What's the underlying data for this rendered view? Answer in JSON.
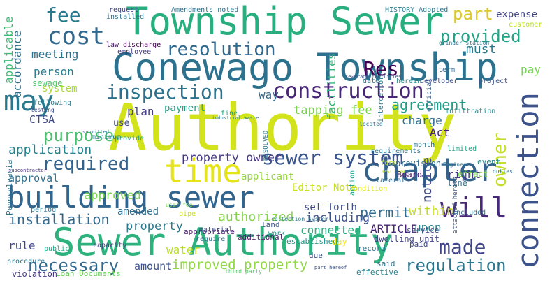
{
  "words": [
    {
      "text": "Authority",
      "color": "#d2e21b"
    },
    {
      "text": "Township Sewer",
      "color": "#29af7f"
    },
    {
      "text": "Conewago Township",
      "color": "#2c728e"
    },
    {
      "text": "Sewer Authority",
      "color": "#2db27d"
    },
    {
      "text": "chapter",
      "color": "#33638d"
    },
    {
      "text": "building sewer",
      "color": "#32658e"
    },
    {
      "text": "may",
      "color": "#2a788e"
    },
    {
      "text": "time",
      "color": "#e5e419"
    },
    {
      "text": "cost",
      "color": "#31688e"
    },
    {
      "text": "connection",
      "color": "#3b528b"
    },
    {
      "text": "construction",
      "color": "#482677"
    },
    {
      "text": "inspection",
      "color": "#2c718e"
    },
    {
      "text": "sewer system",
      "color": "#39558c"
    },
    {
      "text": "resolution",
      "color": "#31688e"
    },
    {
      "text": "will",
      "color": "#482979"
    },
    {
      "text": "required",
      "color": "#33638d"
    },
    {
      "text": "fee",
      "color": "#2a788e"
    },
    {
      "text": "Res",
      "color": "#440154"
    },
    {
      "text": "part",
      "color": "#ddc72a"
    },
    {
      "text": "provided",
      "color": "#20a386"
    },
    {
      "text": "made",
      "color": "#404688"
    },
    {
      "text": "necessary",
      "color": "#31688e"
    },
    {
      "text": "regulation",
      "color": "#2a768e"
    },
    {
      "text": "owner",
      "color": "#c5dd29"
    },
    {
      "text": "purpose",
      "color": "#4ac16d"
    },
    {
      "text": "application",
      "color": "#26828e"
    },
    {
      "text": "improved property",
      "color": "#8fd744"
    },
    {
      "text": "property owner",
      "color": "#453882"
    },
    {
      "text": "tapping fee",
      "color": "#7ad151"
    },
    {
      "text": "agreement",
      "color": "#1f9e89"
    },
    {
      "text": "installation",
      "color": "#31688e"
    },
    {
      "text": "permit",
      "color": "#2f6c8e"
    },
    {
      "text": "approved",
      "color": "#7ad151"
    },
    {
      "text": "authorized",
      "color": "#84d44b"
    },
    {
      "text": "including",
      "color": "#3b528b"
    },
    {
      "text": "connected",
      "color": "#29af7f"
    },
    {
      "text": "ARTICLE",
      "color": "#482475"
    },
    {
      "text": "upon",
      "color": "#238a8d"
    },
    {
      "text": "notice",
      "color": "#3e4a89"
    },
    {
      "text": "within",
      "color": "#c5dd29"
    },
    {
      "text": "right",
      "color": "#453882"
    },
    {
      "text": "person",
      "color": "#287d8e"
    },
    {
      "text": "meeting",
      "color": "#2c728e"
    },
    {
      "text": "must",
      "color": "#2a788e"
    },
    {
      "text": "accordance",
      "color": "#2e6f8e"
    },
    {
      "text": "facilities",
      "color": "#34b679"
    },
    {
      "text": "applicable",
      "color": "#3bbb75"
    },
    {
      "text": "way",
      "color": "#31688e"
    },
    {
      "text": "charge",
      "color": "#2f6c8e"
    },
    {
      "text": "CTSA",
      "color": "#3e4a89"
    },
    {
      "text": "plan",
      "color": "#433e85"
    },
    {
      "text": "payment",
      "color": "#1fa287"
    },
    {
      "text": "property",
      "color": "#2a788e"
    },
    {
      "text": "rule",
      "color": "#404688"
    },
    {
      "text": "amount",
      "color": "#3b528b"
    },
    {
      "text": "water",
      "color": "#bddf26"
    },
    {
      "text": "approval",
      "color": "#2e6e8e"
    },
    {
      "text": "amended",
      "color": "#2e6e8e"
    },
    {
      "text": "set forth",
      "color": "#3e4c8a"
    },
    {
      "text": "applicant",
      "color": "#95d840"
    },
    {
      "text": "Editor Note",
      "color": "#c8e020"
    },
    {
      "text": "system",
      "color": "#a8db34"
    },
    {
      "text": "expense",
      "color": "#404688"
    },
    {
      "text": "Act",
      "color": "#482173"
    },
    {
      "text": "pay",
      "color": "#75d054"
    },
    {
      "text": "sewage",
      "color": "#54c568"
    },
    {
      "text": "use",
      "color": "#3d4d8a"
    },
    {
      "text": "Pennsylvania",
      "color": "#2c718e"
    },
    {
      "text": "Board",
      "color": "#481769"
    },
    {
      "text": "line",
      "color": "#2e6f8e"
    },
    {
      "text": "effect",
      "color": "#7ad151"
    },
    {
      "text": "provision",
      "color": "#2d708e"
    },
    {
      "text": "event",
      "color": "#228c8d"
    },
    {
      "text": "service",
      "color": "#404688"
    },
    {
      "text": "record",
      "color": "#2c728e"
    },
    {
      "text": "paid",
      "color": "#3e4989"
    },
    {
      "text": "dwelling unit",
      "color": "#414487"
    },
    {
      "text": "established",
      "color": "#1f958b"
    },
    {
      "text": "appropriate",
      "color": "#481b6d"
    },
    {
      "text": "land",
      "color": "#3b528b"
    },
    {
      "text": "additional",
      "color": "#481769"
    },
    {
      "text": "work",
      "color": "#20928c"
    },
    {
      "text": "day",
      "color": "#ece51b"
    },
    {
      "text": "due",
      "color": "#3b528b"
    },
    {
      "text": "effective",
      "color": "#26828e"
    },
    {
      "text": "said",
      "color": "#2c728e"
    },
    {
      "text": "violation",
      "color": "#453882"
    },
    {
      "text": "Loan Documents",
      "color": "#6ccd5a"
    },
    {
      "text": "procedure",
      "color": "#2a788e"
    },
    {
      "text": "require",
      "color": "#2e6e8e"
    },
    {
      "text": "material",
      "color": "#3e4a89"
    },
    {
      "text": "capacity",
      "color": "#433e85"
    },
    {
      "text": "public",
      "color": "#22a884"
    },
    {
      "text": "period",
      "color": "#2a788e"
    },
    {
      "text": "pipe",
      "color": "#cde11d"
    },
    {
      "text": "minimum",
      "color": "#2a788e"
    },
    {
      "text": "provide",
      "color": "#20a386"
    },
    {
      "text": "following",
      "color": "#287c8e"
    },
    {
      "text": "month",
      "color": "#2c728e"
    },
    {
      "text": "interceptor",
      "color": "#2a788e"
    },
    {
      "text": "limited",
      "color": "#1f9f88"
    },
    {
      "text": "requirements",
      "color": "#2c728e"
    },
    {
      "text": "condition",
      "color": "#d8e219"
    },
    {
      "text": "lateral",
      "color": "#2f6b8e"
    },
    {
      "text": "action",
      "color": "#1f9e89"
    },
    {
      "text": "included",
      "color": "#2e6e8e"
    },
    {
      "text": "infiltration",
      "color": "#228b8d"
    },
    {
      "text": "official",
      "color": "#365c8d"
    },
    {
      "text": "developer",
      "color": "#3e4a89"
    },
    {
      "text": "herein",
      "color": "#238a8d"
    },
    {
      "text": "date",
      "color": "#2c728e"
    },
    {
      "text": "term",
      "color": "#31688e"
    },
    {
      "text": "project",
      "color": "#3b528b"
    },
    {
      "text": "customer",
      "color": "#b8de29"
    },
    {
      "text": "installed",
      "color": "#2c718e"
    },
    {
      "text": "request",
      "color": "#414487"
    },
    {
      "text": "discharge",
      "color": "#440154"
    },
    {
      "text": "employee",
      "color": "#443a83"
    },
    {
      "text": "Amendments noted",
      "color": "#2c718e"
    },
    {
      "text": "HISTORY Adopted",
      "color": "#2a788e"
    },
    {
      "text": "law",
      "color": "#471365"
    },
    {
      "text": "fine",
      "color": "#1fa088"
    },
    {
      "text": "RESOLVED",
      "color": "#2a778e"
    },
    {
      "text": "form",
      "color": "#bade28"
    },
    {
      "text": "escrow",
      "color": "#b5de2b"
    },
    {
      "text": "attached hereto",
      "color": "#3b528b"
    },
    {
      "text": "Engineer",
      "color": "#2c718e"
    },
    {
      "text": "located",
      "color": "#2c728e"
    },
    {
      "text": "third party",
      "color": "#52c569"
    },
    {
      "text": "testing",
      "color": "#3e4a89"
    },
    {
      "text": "subcontractor",
      "color": "#472d7b"
    },
    {
      "text": "sewerage facilities",
      "color": "#3b528b"
    },
    {
      "text": "collection system",
      "color": "#2a788e"
    },
    {
      "text": "grinder station",
      "color": "#2c728e"
    },
    {
      "text": "user fee",
      "color": "#7ad151"
    },
    {
      "text": "industrial waste",
      "color": "#2a788e"
    },
    {
      "text": "part hereof",
      "color": "#3b528b"
    },
    {
      "text": "submitted",
      "color": "#2c728e"
    },
    {
      "text": "duties",
      "color": "#2e6e8e"
    }
  ]
}
